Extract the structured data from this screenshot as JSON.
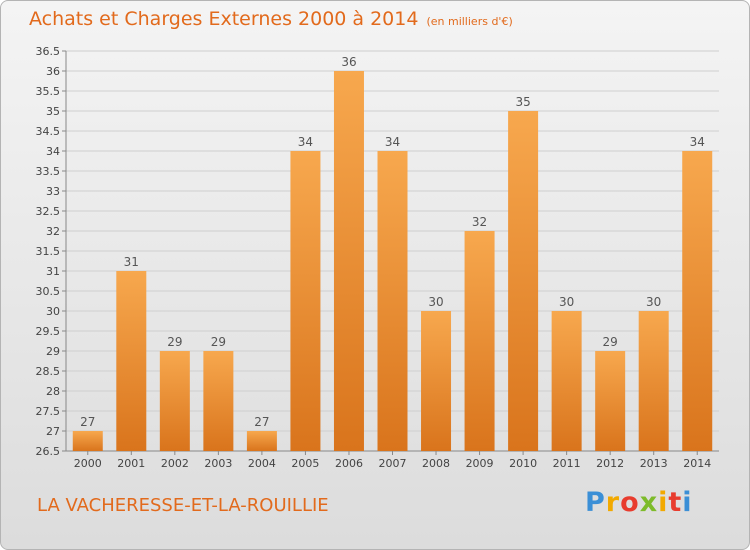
{
  "header": {
    "title": "Achats et Charges Externes 2000 à 2014",
    "subtitle": "(en milliers d'€)"
  },
  "footer": {
    "commune": "LA VACHERESSE-ET-LA-ROUILLIE",
    "brand": "Proxiti"
  },
  "colors": {
    "accent": "#e26a1c",
    "bar_light": "#f7a84e",
    "bar_dark": "#d9741c"
  },
  "chart_data": {
    "type": "bar",
    "title": "Achats et Charges Externes 2000 à 2014",
    "subtitle": "(en milliers d'€)",
    "xlabel": "",
    "ylabel": "",
    "categories": [
      "2000",
      "2001",
      "2002",
      "2003",
      "2004",
      "2005",
      "2006",
      "2007",
      "2008",
      "2009",
      "2010",
      "2011",
      "2012",
      "2013",
      "2014"
    ],
    "values": [
      27,
      31,
      29,
      29,
      27,
      34,
      36,
      34,
      30,
      32,
      35,
      30,
      29,
      30,
      34
    ],
    "ylim": [
      26.5,
      36.5
    ],
    "yticks": [
      "26.5",
      "27",
      "27.5",
      "28",
      "28.5",
      "29",
      "29.5",
      "30",
      "30.5",
      "31",
      "31.5",
      "32",
      "32.5",
      "33",
      "33.5",
      "34",
      "34.5",
      "35",
      "35.5",
      "36",
      "36.5"
    ],
    "grid": true,
    "legend": "none",
    "data_labels": true
  }
}
